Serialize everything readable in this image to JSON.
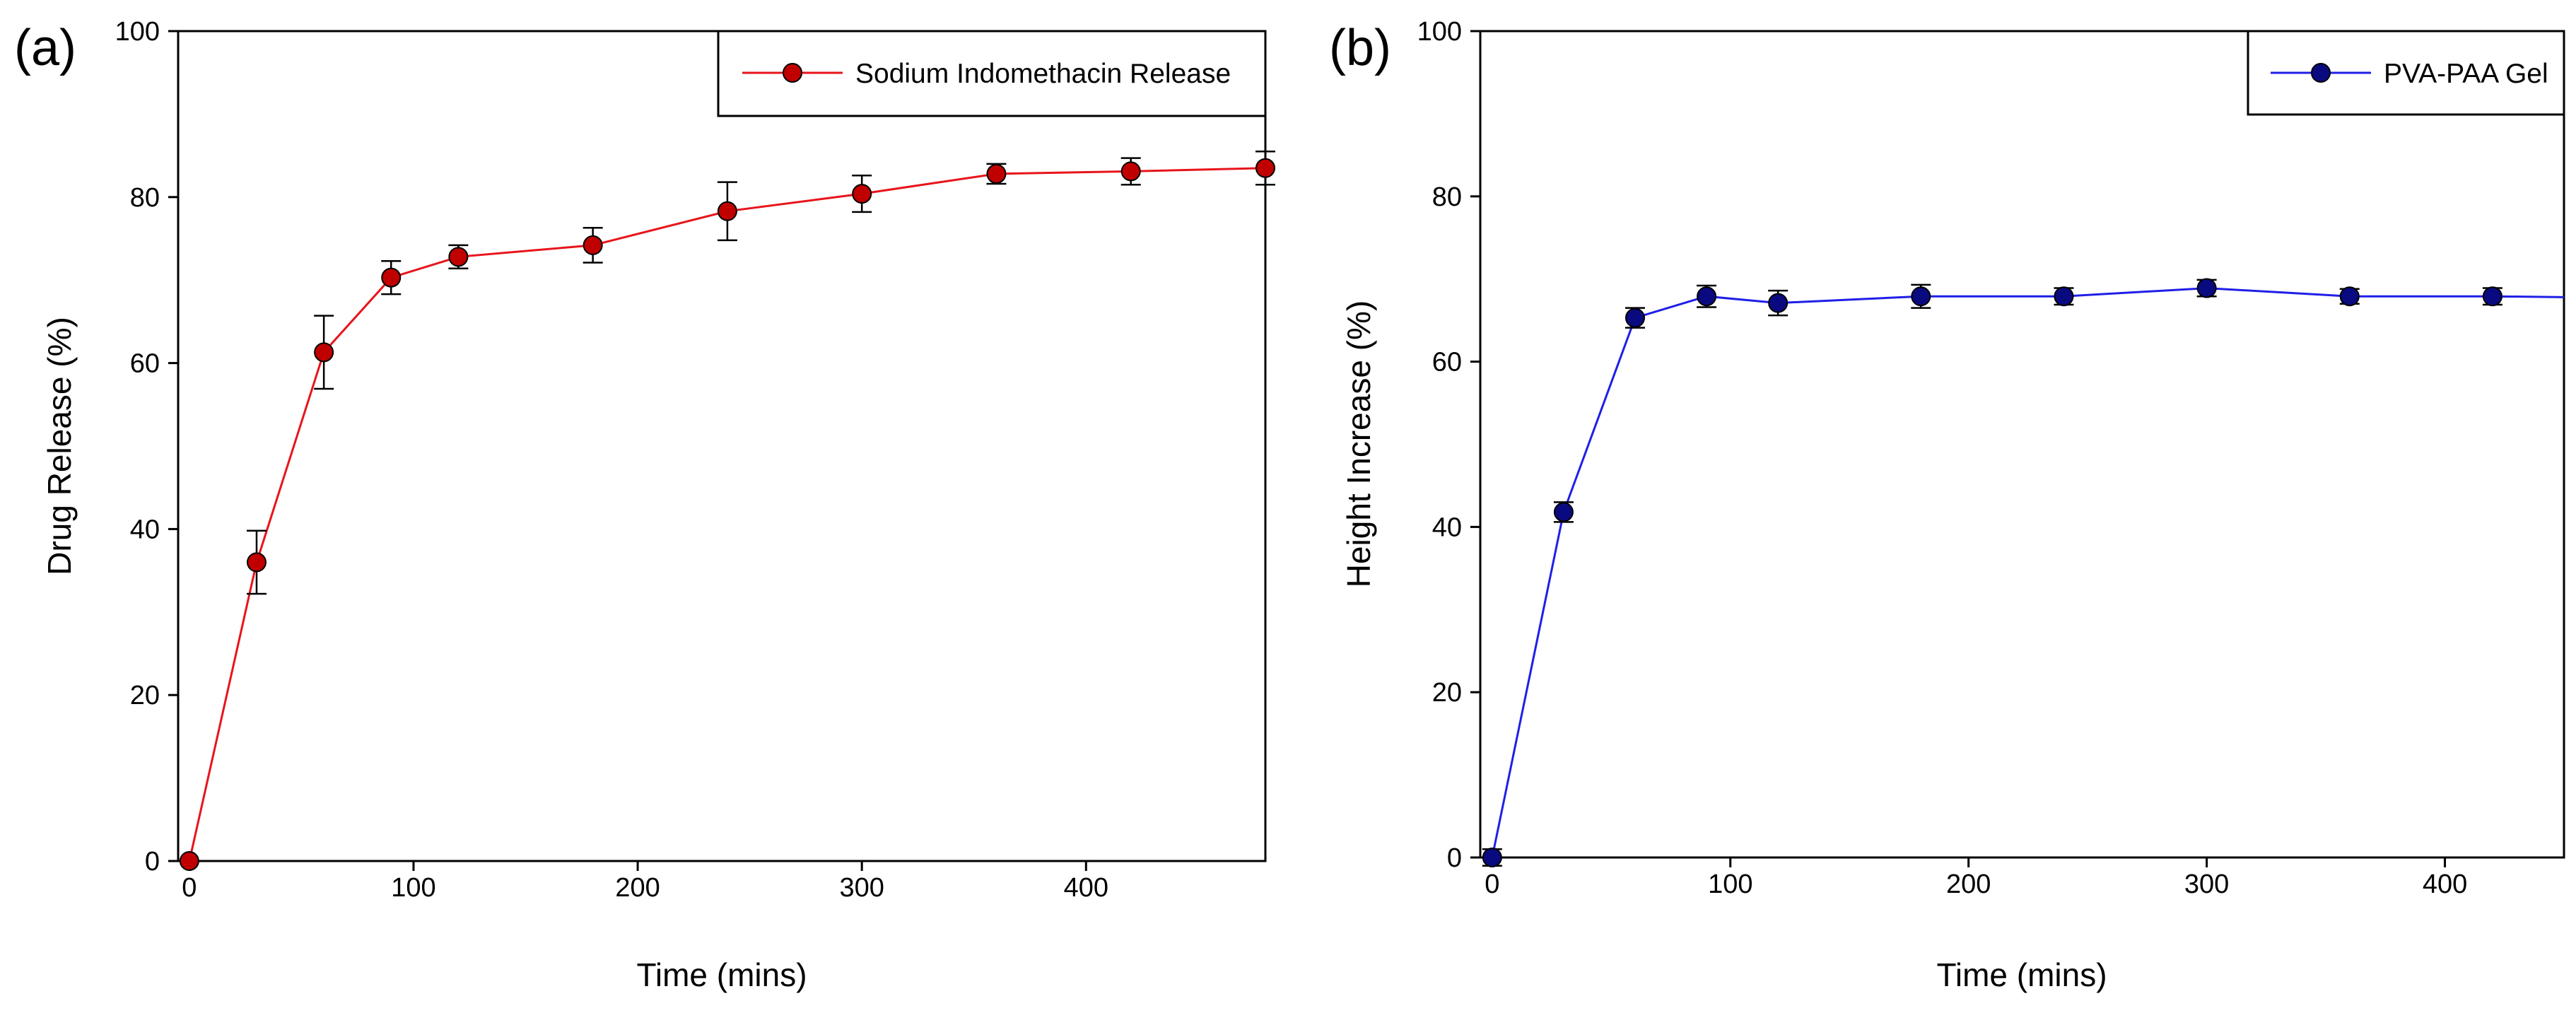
{
  "chart_data": [
    {
      "type": "line",
      "panel_label": "(a)",
      "title": "",
      "xlabel": "Time (mins)",
      "ylabel": "Drug Release (%)",
      "xlim": [
        -5,
        480
      ],
      "ylim": [
        0,
        100
      ],
      "xticks": [
        "0",
        "100",
        "200",
        "300",
        "400"
      ],
      "yticks": [
        "0",
        "20",
        "40",
        "60",
        "80",
        "100"
      ],
      "legend_position": "top-right",
      "grid": false,
      "series": [
        {
          "name": "Sodium Indomethacin Release",
          "color": "#e8141c",
          "marker_color": "#c00000",
          "x": [
            0,
            30,
            60,
            90,
            120,
            180,
            240,
            300,
            360,
            420,
            480
          ],
          "y": [
            0,
            36,
            61.3,
            70.3,
            72.8,
            74.2,
            78.3,
            80.4,
            82.8,
            83.1,
            83.5
          ],
          "yerr": [
            0,
            3.8,
            4.4,
            2.0,
            1.4,
            2.1,
            3.5,
            2.2,
            1.2,
            1.6,
            2.0
          ]
        }
      ]
    },
    {
      "type": "line",
      "panel_label": "(b)",
      "title": "",
      "xlabel": "Time (mins)",
      "ylabel": "Height Increase (%)",
      "xlim": [
        -5,
        450
      ],
      "ylim": [
        0,
        100
      ],
      "xticks": [
        "0",
        "100",
        "200",
        "300",
        "400"
      ],
      "yticks": [
        "0",
        "20",
        "40",
        "60",
        "80",
        "100"
      ],
      "legend_position": "top-right",
      "grid": false,
      "series": [
        {
          "name": "PVA-PAA Gel",
          "color": "#1f1fe8",
          "marker_color": "#0a0a80",
          "x": [
            0,
            30,
            60,
            90,
            120,
            180,
            240,
            300,
            360,
            420,
            450
          ],
          "y": [
            0,
            41.8,
            65.3,
            67.9,
            67.1,
            67.9,
            67.9,
            68.9,
            67.9,
            67.9,
            67.8
          ],
          "yerr": [
            1.0,
            1.2,
            1.2,
            1.3,
            1.5,
            1.4,
            1.0,
            1.0,
            0.9,
            1.0,
            0
          ],
          "markers": [
            true,
            true,
            true,
            true,
            true,
            true,
            true,
            true,
            true,
            true,
            false
          ]
        }
      ]
    }
  ]
}
